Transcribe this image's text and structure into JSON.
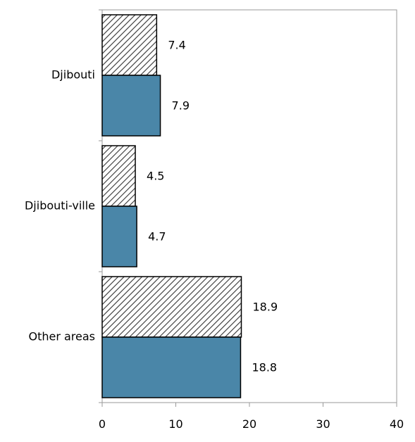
{
  "chart_data": {
    "type": "bar",
    "orientation": "horizontal",
    "categories": [
      "Djibouti",
      "Djibouti-ville",
      "Other areas"
    ],
    "series": [
      {
        "values": [
          7.4,
          4.5,
          18.9
        ],
        "pattern": "diagonal-hatch",
        "color": "#ffffff"
      },
      {
        "values": [
          7.9,
          4.7,
          18.8
        ],
        "pattern": "solid",
        "color": "#4a86a8"
      }
    ],
    "x_ticks": [
      "0",
      "10",
      "20",
      "30",
      "40"
    ],
    "xlim": [
      0,
      40
    ],
    "grid": false,
    "data_labels": true
  }
}
